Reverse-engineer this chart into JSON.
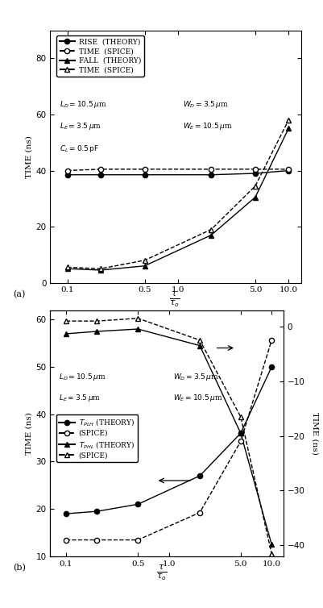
{
  "x_vals": [
    0.1,
    0.2,
    0.5,
    2.0,
    5.0,
    10.0
  ],
  "plot_a": {
    "rise_theory": [
      38.5,
      38.5,
      38.5,
      38.5,
      39.0,
      40.0
    ],
    "rise_spice": [
      40.0,
      40.5,
      40.5,
      40.5,
      40.5,
      40.5
    ],
    "fall_theory": [
      5.0,
      4.5,
      6.0,
      17.0,
      30.5,
      55.0
    ],
    "fall_spice": [
      5.5,
      5.0,
      8.0,
      19.0,
      34.5,
      58.0
    ],
    "ylim": [
      0,
      90
    ],
    "yticks": [
      0,
      20,
      40,
      60,
      80
    ]
  },
  "plot_b": {
    "tplh_theory": [
      19.0,
      19.5,
      21.0,
      27.0,
      36.0,
      50.0
    ],
    "tphl_theory": [
      57.0,
      57.5,
      58.0,
      54.5,
      36.0,
      12.5
    ],
    "tplh_spice_r": [
      -39.0,
      -39.0,
      -39.0,
      -34.0,
      -21.0,
      -2.5
    ],
    "tphl_spice_r": [
      1.0,
      1.0,
      1.5,
      -2.5,
      -16.5,
      -41.5
    ],
    "ylim_left": [
      10,
      62
    ],
    "yticks_left": [
      10,
      20,
      30,
      40,
      50,
      60
    ],
    "ylim_right": [
      -42,
      3
    ],
    "yticks_right": [
      -40,
      -30,
      -20,
      -10,
      0
    ]
  },
  "x_ticks": [
    0.1,
    0.5,
    1.0,
    5.0,
    10.0
  ],
  "x_tick_labels": [
    "0.1",
    "0.5",
    "1.0",
    "5.0",
    "10.0"
  ],
  "xlim": [
    0.07,
    13.0
  ],
  "color": "#000000",
  "lw": 1.0,
  "ms": 4.5
}
